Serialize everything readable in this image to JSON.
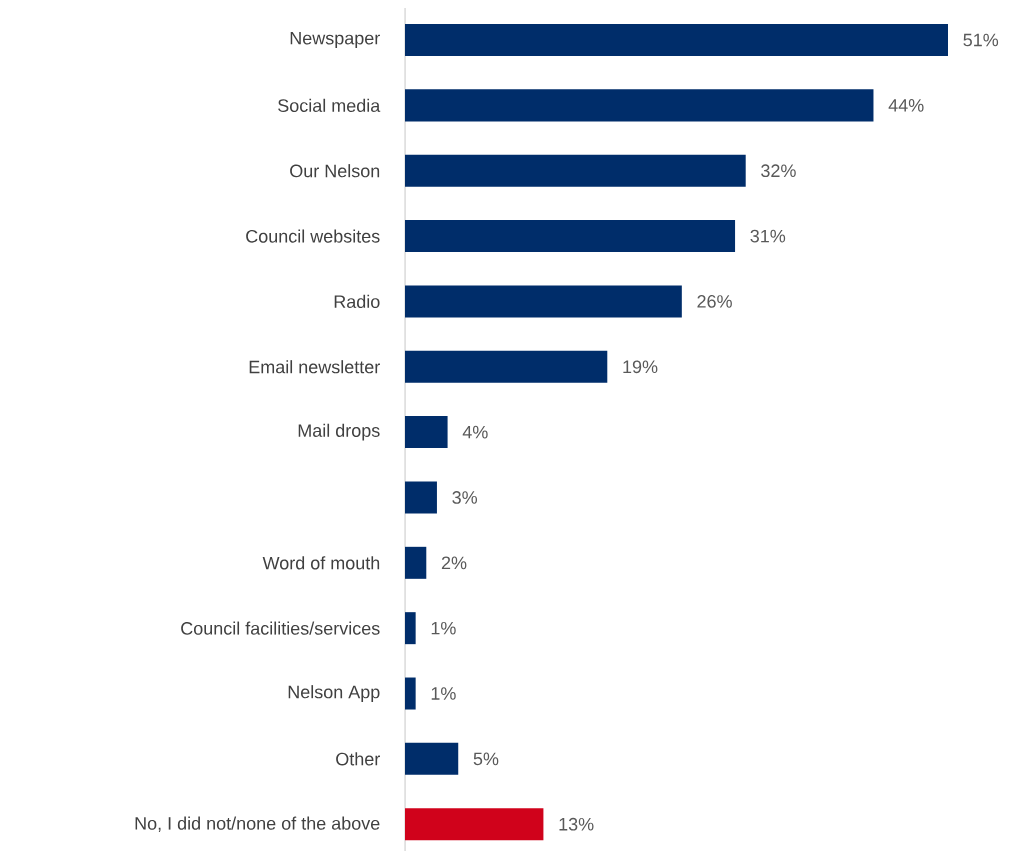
{
  "chart_data": {
    "type": "bar",
    "orientation": "horizontal",
    "categories": [
      "Newspaper",
      "Social media",
      "Our Nelson",
      "Council websites",
      "Radio",
      "Email newsletter",
      "Mail drops",
      null,
      "Word of mouth",
      "Council facilities/services",
      "Nelson App",
      "Other",
      "No, I did not/none of the above"
    ],
    "values": [
      51,
      44,
      32,
      31,
      26,
      19,
      4,
      3,
      2,
      1,
      1,
      5,
      13
    ],
    "value_labels": [
      "51%",
      "44%",
      "32%",
      "31%",
      "26%",
      "19%",
      "4%",
      "3%",
      "2%",
      "1%",
      "1%",
      "5%",
      "13%"
    ],
    "colors": [
      "#002d6a",
      "#002d6a",
      "#002d6a",
      "#002d6a",
      "#002d6a",
      "#002d6a",
      "#002d6a",
      "#002d6a",
      "#002d6a",
      "#002d6a",
      "#002d6a",
      "#002d6a",
      "#d0021b"
    ]
  }
}
